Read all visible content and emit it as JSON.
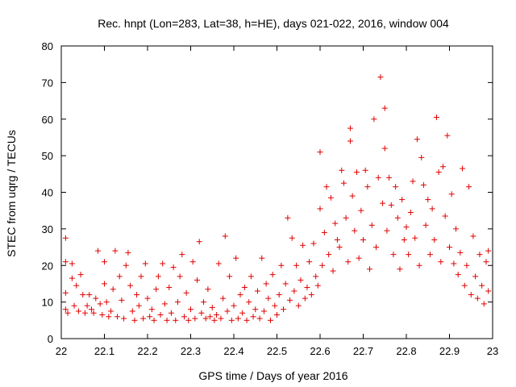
{
  "chart_data": {
    "type": "scatter",
    "title": "Rec. hnpt (Lon=283, Lat=38, h=HE), days 021-022, 2016, window 004",
    "xlabel": "GPS time / Days of year 2016",
    "ylabel": "STEC from uqrg / TECUs",
    "xlim": [
      22,
      23
    ],
    "ylim": [
      0,
      80
    ],
    "xticks": [
      "22",
      "22.1",
      "22.2",
      "22.3",
      "22.4",
      "22.5",
      "22.6",
      "22.7",
      "22.8",
      "22.9",
      "23"
    ],
    "yticks": [
      "0",
      "10",
      "20",
      "30",
      "40",
      "50",
      "60",
      "70",
      "80"
    ],
    "grid": false,
    "marker": "plus",
    "color": "#e00000",
    "series": [
      {
        "points": [
          [
            22.01,
            27.5
          ],
          [
            22.01,
            21
          ],
          [
            22.01,
            12.5
          ],
          [
            22.01,
            8
          ],
          [
            22.015,
            7
          ],
          [
            22.025,
            20.5
          ],
          [
            22.025,
            16.5
          ],
          [
            22.03,
            9
          ],
          [
            22.035,
            14.5
          ],
          [
            22.04,
            7.5
          ],
          [
            22.045,
            17.5
          ],
          [
            22.05,
            12
          ],
          [
            22.055,
            7
          ],
          [
            22.06,
            9
          ],
          [
            22.065,
            12
          ],
          [
            22.07,
            8
          ],
          [
            22.075,
            7
          ],
          [
            22.08,
            11
          ],
          [
            22.085,
            24
          ],
          [
            22.09,
            9.5
          ],
          [
            22.095,
            6.5
          ],
          [
            22.1,
            15
          ],
          [
            22.1,
            21
          ],
          [
            22.105,
            10
          ],
          [
            22.11,
            6
          ],
          [
            22.115,
            7.5
          ],
          [
            22.12,
            13.5
          ],
          [
            22.125,
            24
          ],
          [
            22.13,
            6
          ],
          [
            22.135,
            17
          ],
          [
            22.14,
            10.5
          ],
          [
            22.145,
            5.5
          ],
          [
            22.15,
            20
          ],
          [
            22.155,
            23.5
          ],
          [
            22.16,
            14.5
          ],
          [
            22.165,
            7.5
          ],
          [
            22.17,
            5
          ],
          [
            22.175,
            12
          ],
          [
            22.18,
            9
          ],
          [
            22.185,
            17
          ],
          [
            22.19,
            5.5
          ],
          [
            22.195,
            20.5
          ],
          [
            22.2,
            11
          ],
          [
            22.205,
            6
          ],
          [
            22.21,
            8
          ],
          [
            22.215,
            5
          ],
          [
            22.22,
            13.5
          ],
          [
            22.225,
            17
          ],
          [
            22.23,
            6.5
          ],
          [
            22.235,
            20.5
          ],
          [
            22.24,
            9.5
          ],
          [
            22.245,
            5
          ],
          [
            22.25,
            14
          ],
          [
            22.255,
            7
          ],
          [
            22.26,
            19.5
          ],
          [
            22.265,
            5
          ],
          [
            22.27,
            10
          ],
          [
            22.275,
            17
          ],
          [
            22.28,
            23
          ],
          [
            22.285,
            6
          ],
          [
            22.29,
            12.5
          ],
          [
            22.295,
            5
          ],
          [
            22.3,
            8
          ],
          [
            22.305,
            21
          ],
          [
            22.31,
            5.5
          ],
          [
            22.315,
            16
          ],
          [
            22.32,
            26.5
          ],
          [
            22.325,
            7
          ],
          [
            22.33,
            10
          ],
          [
            22.335,
            5.5
          ],
          [
            22.34,
            13.5
          ],
          [
            22.345,
            6
          ],
          [
            22.35,
            8.5
          ],
          [
            22.355,
            5
          ],
          [
            22.36,
            6.5
          ],
          [
            22.365,
            20.5
          ],
          [
            22.37,
            5.5
          ],
          [
            22.375,
            11
          ],
          [
            22.38,
            28
          ],
          [
            22.385,
            7.5
          ],
          [
            22.39,
            17
          ],
          [
            22.395,
            5
          ],
          [
            22.4,
            9
          ],
          [
            22.405,
            22
          ],
          [
            22.41,
            5.5
          ],
          [
            22.415,
            12
          ],
          [
            22.42,
            7
          ],
          [
            22.425,
            14
          ],
          [
            22.43,
            5
          ],
          [
            22.435,
            10
          ],
          [
            22.44,
            17
          ],
          [
            22.445,
            6
          ],
          [
            22.45,
            8
          ],
          [
            22.455,
            13
          ],
          [
            22.46,
            5.5
          ],
          [
            22.465,
            22
          ],
          [
            22.47,
            7.5
          ],
          [
            22.475,
            15
          ],
          [
            22.48,
            11
          ],
          [
            22.485,
            5
          ],
          [
            22.49,
            17.5
          ],
          [
            22.495,
            9
          ],
          [
            22.5,
            6.5
          ],
          [
            22.505,
            12
          ],
          [
            22.51,
            20
          ],
          [
            22.515,
            8
          ],
          [
            22.52,
            15
          ],
          [
            22.525,
            33
          ],
          [
            22.53,
            10.5
          ],
          [
            22.535,
            27.5
          ],
          [
            22.54,
            13
          ],
          [
            22.545,
            20
          ],
          [
            22.55,
            9
          ],
          [
            22.555,
            16
          ],
          [
            22.56,
            25.5
          ],
          [
            22.565,
            11
          ],
          [
            22.57,
            14
          ],
          [
            22.575,
            21
          ],
          [
            22.58,
            12
          ],
          [
            22.585,
            26
          ],
          [
            22.59,
            17
          ],
          [
            22.595,
            14.5
          ],
          [
            22.6,
            51
          ],
          [
            22.6,
            35.5
          ],
          [
            22.605,
            20
          ],
          [
            22.61,
            29
          ],
          [
            22.615,
            41.5
          ],
          [
            22.62,
            23
          ],
          [
            22.625,
            38.5
          ],
          [
            22.63,
            18.5
          ],
          [
            22.635,
            31.5
          ],
          [
            22.64,
            27
          ],
          [
            22.645,
            25
          ],
          [
            22.65,
            46
          ],
          [
            22.655,
            42.5
          ],
          [
            22.66,
            33
          ],
          [
            22.665,
            21
          ],
          [
            22.67,
            57.5
          ],
          [
            22.67,
            54
          ],
          [
            22.675,
            39
          ],
          [
            22.68,
            29.5
          ],
          [
            22.685,
            45.5
          ],
          [
            22.69,
            22
          ],
          [
            22.695,
            35
          ],
          [
            22.7,
            27
          ],
          [
            22.705,
            46
          ],
          [
            22.71,
            41.5
          ],
          [
            22.715,
            19
          ],
          [
            22.72,
            31
          ],
          [
            22.725,
            60
          ],
          [
            22.73,
            25
          ],
          [
            22.735,
            44
          ],
          [
            22.74,
            71.5
          ],
          [
            22.745,
            37
          ],
          [
            22.75,
            63
          ],
          [
            22.75,
            52
          ],
          [
            22.755,
            29.5
          ],
          [
            22.76,
            44
          ],
          [
            22.765,
            36.5
          ],
          [
            22.77,
            23
          ],
          [
            22.775,
            41.5
          ],
          [
            22.78,
            33
          ],
          [
            22.785,
            19
          ],
          [
            22.79,
            38
          ],
          [
            22.795,
            27
          ],
          [
            22.8,
            30.5
          ],
          [
            22.805,
            23
          ],
          [
            22.81,
            34.5
          ],
          [
            22.815,
            43
          ],
          [
            22.82,
            27.5
          ],
          [
            22.825,
            54.5
          ],
          [
            22.83,
            20
          ],
          [
            22.835,
            49.5
          ],
          [
            22.84,
            42
          ],
          [
            22.845,
            31
          ],
          [
            22.85,
            38
          ],
          [
            22.855,
            23
          ],
          [
            22.86,
            35.5
          ],
          [
            22.865,
            27
          ],
          [
            22.87,
            60.5
          ],
          [
            22.875,
            45.5
          ],
          [
            22.88,
            21
          ],
          [
            22.885,
            47
          ],
          [
            22.89,
            33.5
          ],
          [
            22.895,
            55.5
          ],
          [
            22.9,
            25
          ],
          [
            22.905,
            39.5
          ],
          [
            22.91,
            20.5
          ],
          [
            22.915,
            30
          ],
          [
            22.92,
            17.5
          ],
          [
            22.925,
            23.5
          ],
          [
            22.93,
            46.5
          ],
          [
            22.935,
            14.5
          ],
          [
            22.94,
            20
          ],
          [
            22.945,
            41.5
          ],
          [
            22.95,
            12
          ],
          [
            22.955,
            28
          ],
          [
            22.96,
            17
          ],
          [
            22.965,
            11
          ],
          [
            22.97,
            23
          ],
          [
            22.975,
            14.5
          ],
          [
            22.98,
            9.5
          ],
          [
            22.985,
            21
          ],
          [
            22.99,
            13
          ],
          [
            22.99,
            24
          ]
        ]
      }
    ]
  }
}
